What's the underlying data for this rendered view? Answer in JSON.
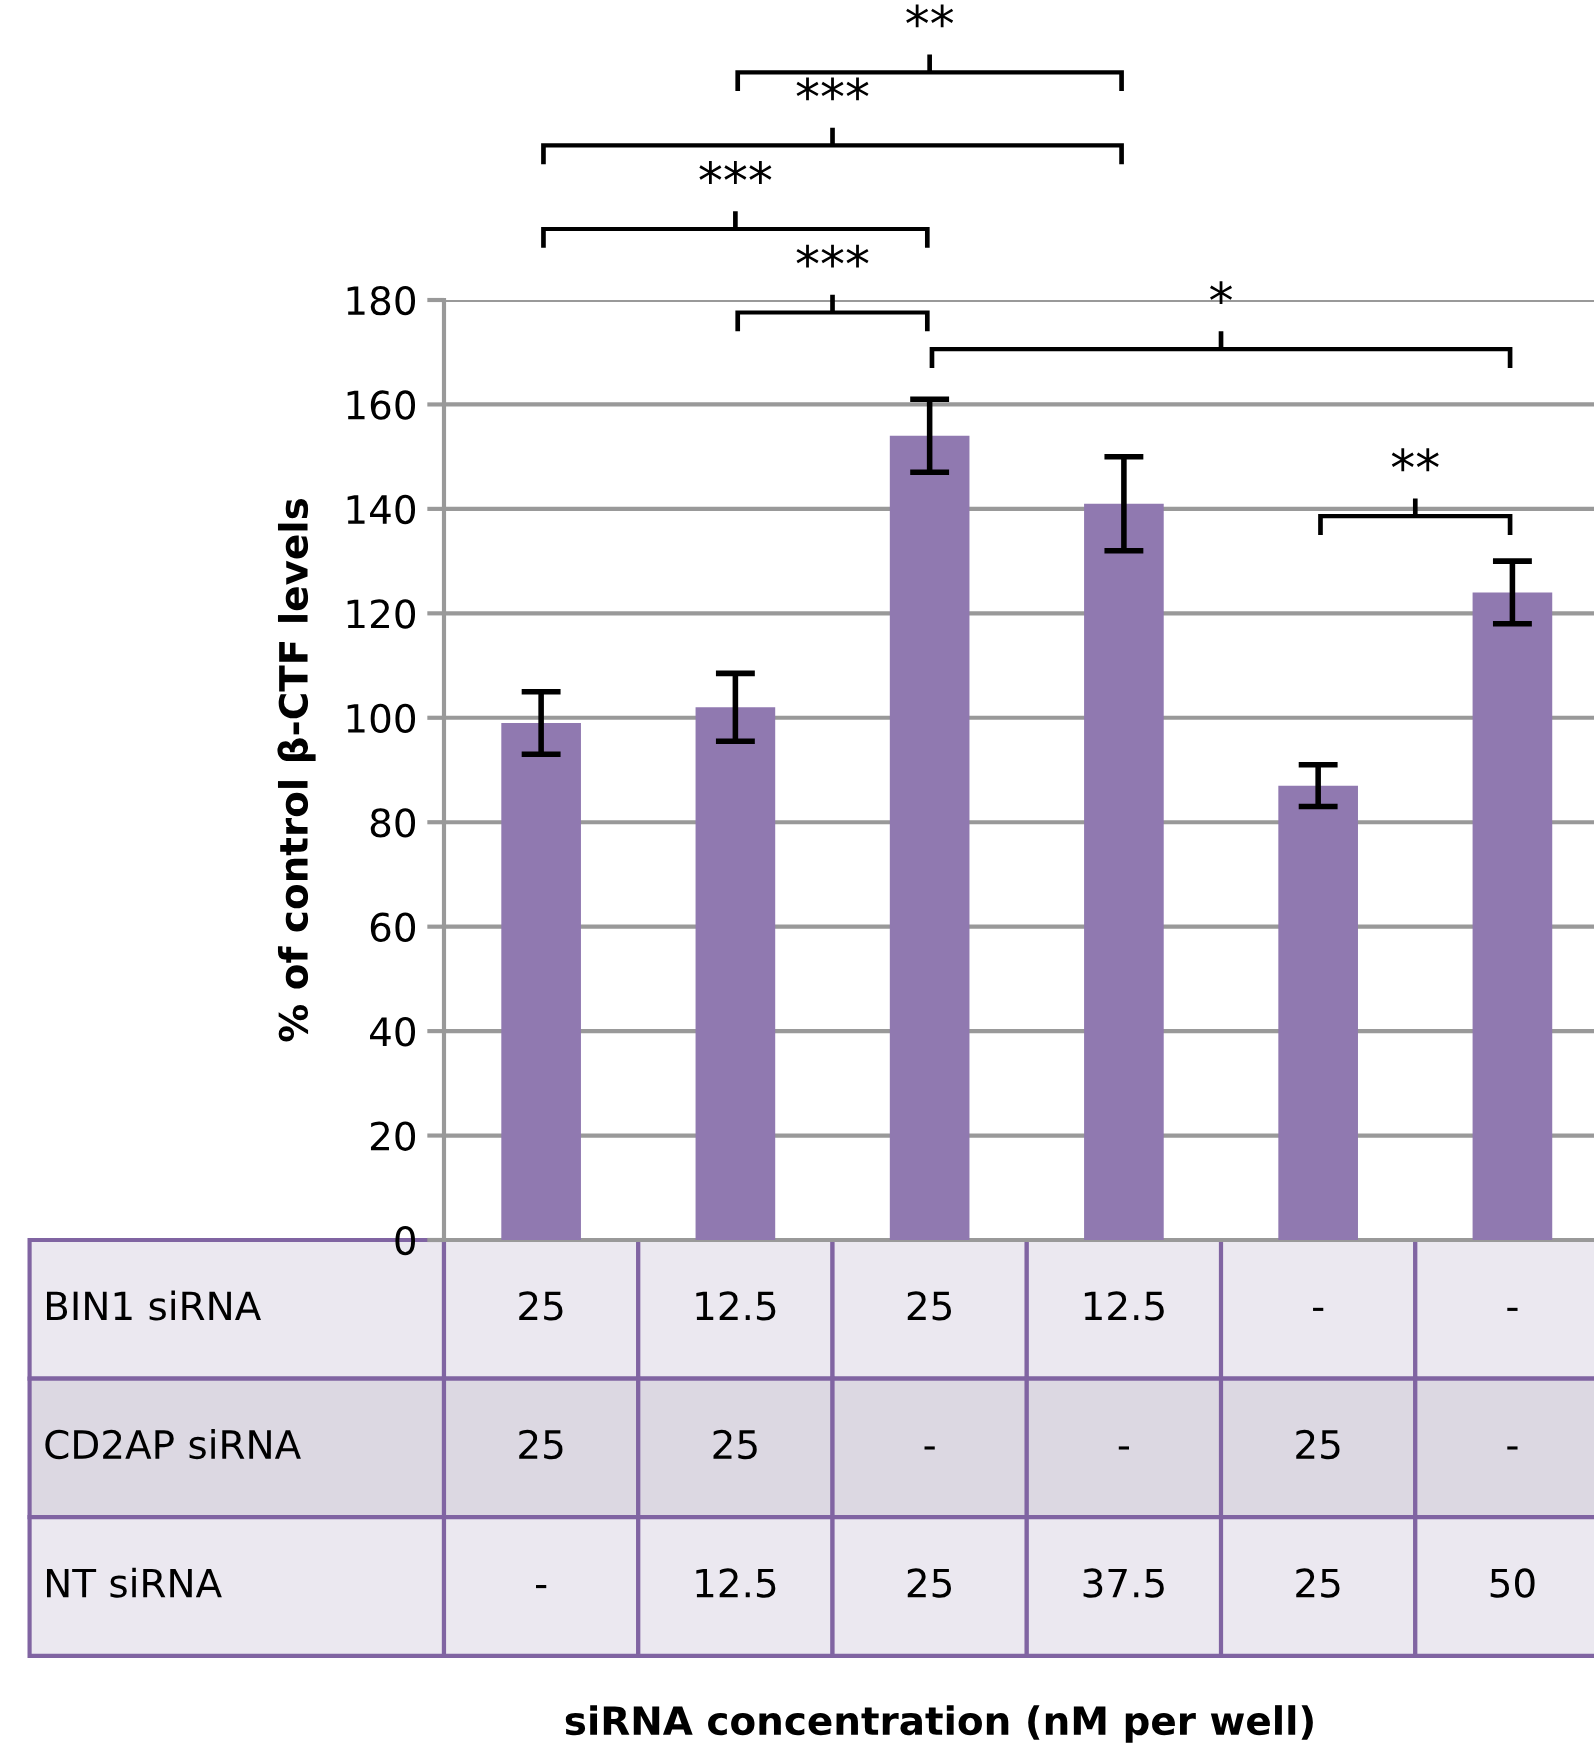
{
  "chart_data": {
    "type": "bar",
    "ylabel": "% of control β-CTF levels",
    "categories": [
      null,
      null,
      null,
      null,
      null,
      null
    ],
    "values": [
      99,
      102,
      154,
      141,
      87,
      124
    ],
    "errors": [
      6,
      6.5,
      7,
      9,
      4,
      6
    ],
    "color": "#9079b0",
    "ylim": [
      0,
      180
    ],
    "yticks": [
      0,
      20,
      40,
      60,
      80,
      100,
      120,
      140,
      160,
      180
    ],
    "grid": "y",
    "annotations": [
      "**",
      "***",
      "***",
      "***",
      "*",
      "**",
      "BIN1 siRNA",
      "25",
      "12.5",
      "25",
      "12.5",
      "-",
      "-",
      "CD2AP siRNA",
      "25",
      "25",
      "-",
      "-",
      "25",
      "-",
      "NT siRNA",
      "-",
      "12.5",
      "25",
      "37.5",
      "25",
      "50",
      "siRNA concentration (nM per well)"
    ]
  }
}
